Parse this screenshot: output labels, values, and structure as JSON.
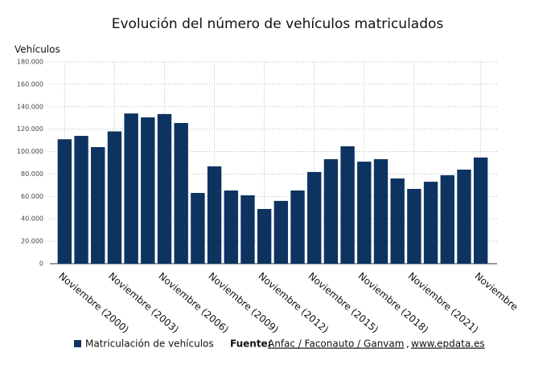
{
  "chart_data": {
    "type": "bar",
    "title": "Evolución del número de vehículos matriculados",
    "y_label": "Vehículos",
    "categories": [
      "Noviembre (2000)",
      null,
      null,
      "Noviembre (2003)",
      null,
      null,
      "Noviembre (2006)",
      null,
      null,
      "Noviembre (2009)",
      null,
      null,
      "Noviembre (2012)",
      null,
      null,
      "Noviembre (2015)",
      null,
      null,
      "Noviembre (2018)",
      null,
      null,
      "Noviembre (2021)",
      null,
      null,
      null,
      "Noviembre"
    ],
    "series": [
      {
        "name": "Matriculación de vehículos",
        "color": "#0d3360",
        "values": [
          111000,
          114000,
          104000,
          118000,
          134000,
          130500,
          133500,
          125500,
          63100,
          86800,
          65300,
          61000,
          48800,
          56000,
          65300,
          81800,
          93200,
          104700,
          91000,
          93200,
          76000,
          66700,
          73100,
          78900,
          83900,
          94700
        ]
      }
    ],
    "ylim": [
      0,
      180000
    ],
    "yticks": [
      0,
      {
        "value": 20000,
        "label": "20.000"
      },
      {
        "value": 40000,
        "label": "40.000"
      },
      {
        "value": 60000,
        "label": "60.000"
      },
      {
        "value": 80000,
        "label": "80.000"
      },
      {
        "value": 100000,
        "label": "100.000"
      },
      {
        "value": 120000,
        "label": "120.000"
      },
      {
        "value": 140000,
        "label": "140.000"
      },
      {
        "value": 160000,
        "label": "160.000"
      },
      {
        "value": 180000,
        "label": "180.000"
      }
    ],
    "grid": true,
    "source": {
      "label": "Fuente:",
      "parts": [
        "Anfac / Faconauto / Ganvam",
        ",",
        "www.epdata.es"
      ]
    }
  }
}
